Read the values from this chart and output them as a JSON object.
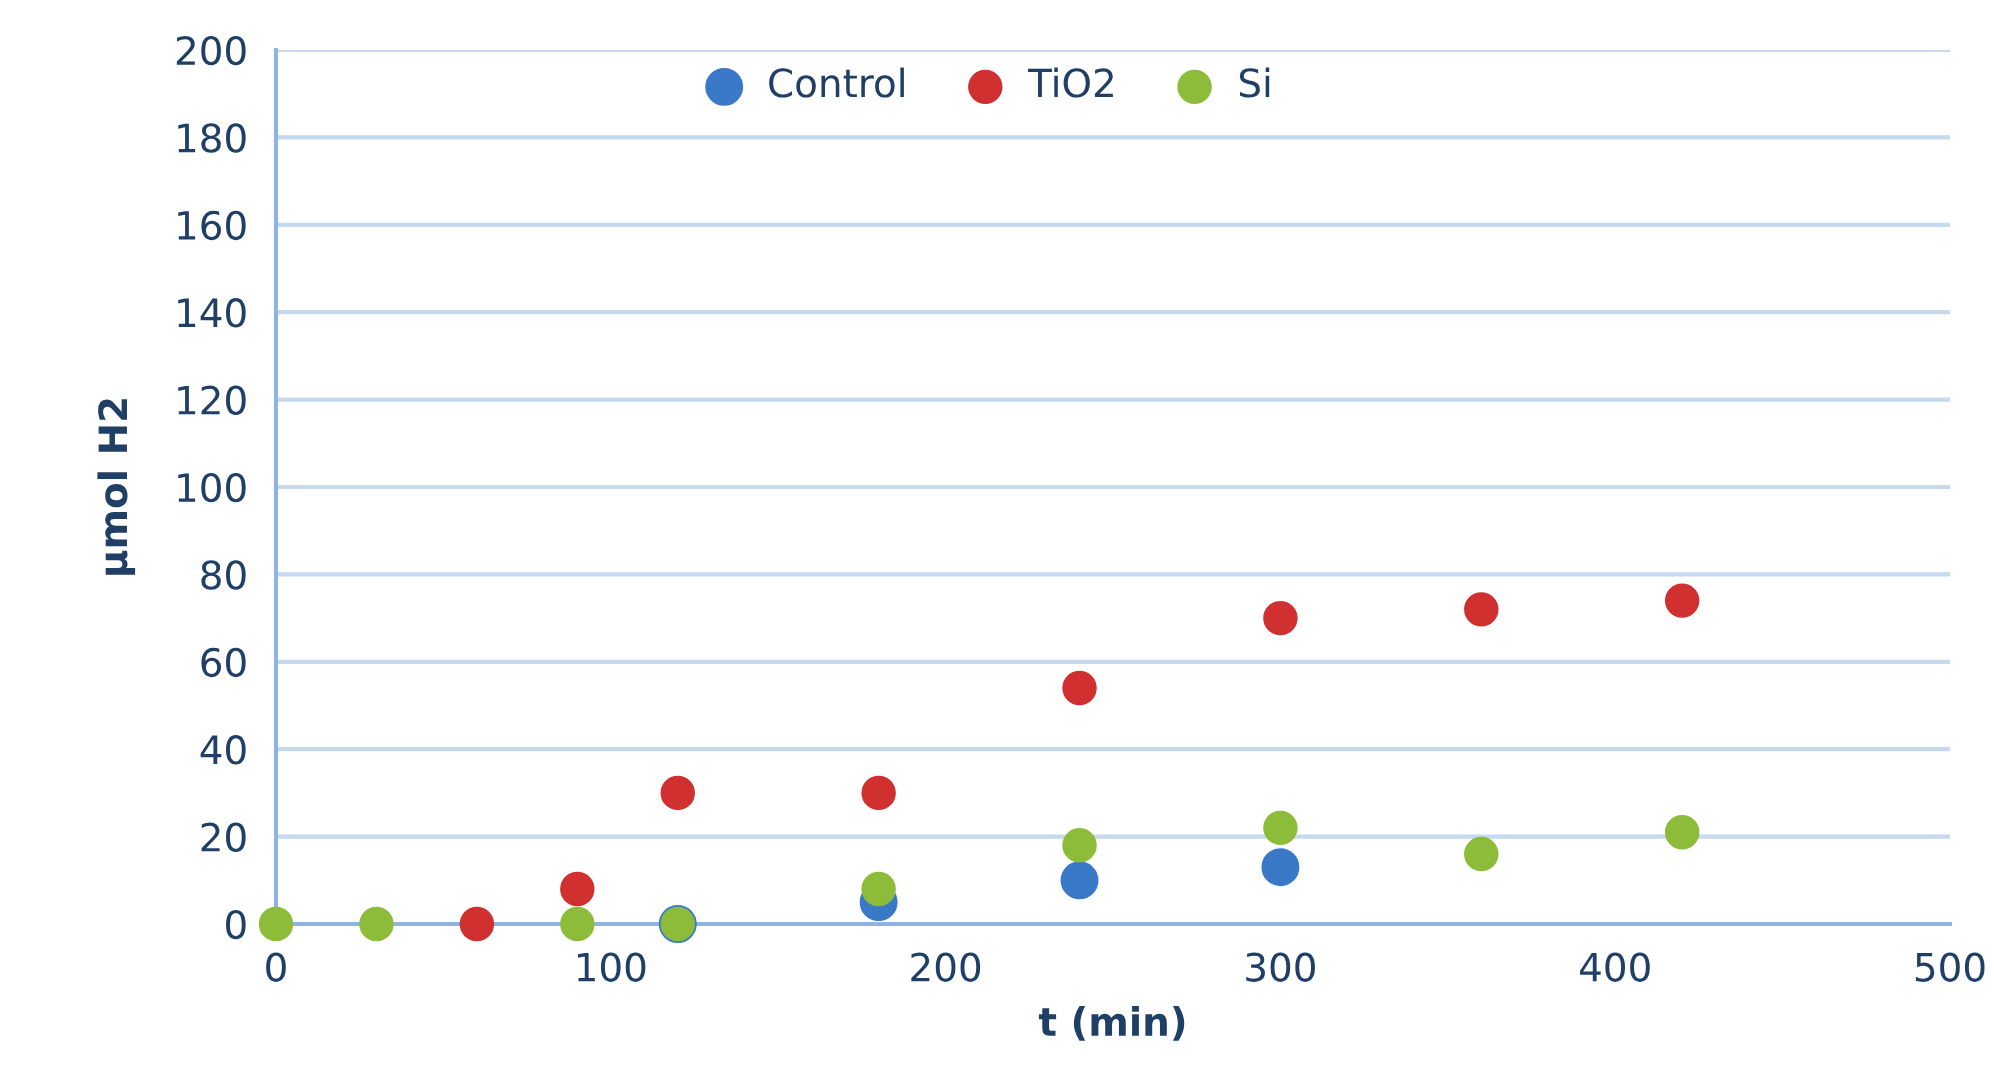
{
  "chart_data": {
    "type": "scatter",
    "xlabel": "t (min)",
    "ylabel": "µmol H2",
    "x": [
      0,
      30,
      60,
      90,
      120,
      180,
      240,
      300,
      360,
      420
    ],
    "series": [
      {
        "name": "Control",
        "color": "#3a78c8",
        "values": [
          null,
          null,
          null,
          null,
          0,
          5,
          10,
          13,
          null,
          null
        ]
      },
      {
        "name": "TiO2",
        "color": "#d03030",
        "values": [
          null,
          null,
          0,
          8,
          30,
          30,
          54,
          70,
          72,
          74
        ]
      },
      {
        "name": "Si",
        "color": "#8cbc3a",
        "values": [
          0,
          0,
          null,
          0,
          0,
          8,
          18,
          22,
          16,
          21
        ]
      }
    ],
    "xlim": [
      0,
      500
    ],
    "xticks": [
      0,
      100,
      200,
      300,
      400,
      500
    ],
    "ylim": [
      0,
      200
    ],
    "yticks": [
      0,
      20,
      40,
      60,
      80,
      100,
      120,
      140,
      160,
      180,
      200
    ],
    "grid": "y",
    "legend": "top",
    "marker": "circle"
  }
}
